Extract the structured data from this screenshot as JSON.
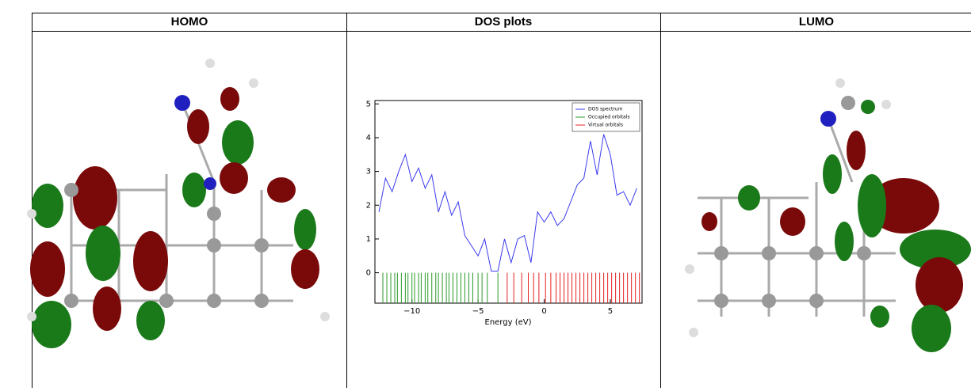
{
  "table": {
    "headers": [
      "HOMO",
      "DOS plots",
      "LUMO"
    ]
  },
  "chart_data": {
    "type": "dos",
    "xlabel": "Energy (eV)",
    "xlim": [
      -12.8,
      7.4
    ],
    "xticks": [
      {
        "value": -10,
        "label": "−10"
      },
      {
        "value": -5,
        "label": "−5"
      },
      0,
      5
    ],
    "ylim": [
      -0.9,
      5.1
    ],
    "yticks": [
      0,
      1,
      2,
      3,
      4,
      5
    ],
    "legend": "upper right",
    "series": [
      {
        "name": "DOS spectrum",
        "color": "#3b3bf0",
        "x": [
          -12.5,
          -12,
          -11.5,
          -11,
          -10.5,
          -10,
          -9.5,
          -9,
          -8.5,
          -8,
          -7.5,
          -7,
          -6.5,
          -6,
          -5.5,
          -5,
          -4.5,
          -4,
          -3.5,
          -3,
          -2.5,
          -2,
          -1.5,
          -1,
          -0.5,
          0,
          0.5,
          1,
          1.5,
          2,
          2.5,
          3,
          3.5,
          4,
          4.5,
          5,
          5.5,
          6,
          6.5,
          7
        ],
        "values": [
          1.8,
          2.8,
          2.4,
          3.0,
          3.5,
          2.7,
          3.1,
          2.5,
          2.9,
          1.8,
          2.4,
          1.7,
          2.1,
          1.1,
          0.8,
          0.5,
          1.0,
          0.05,
          0.05,
          1.0,
          0.3,
          1.0,
          1.1,
          0.3,
          1.8,
          1.5,
          1.8,
          1.4,
          1.6,
          2.1,
          2.6,
          2.8,
          3.9,
          2.9,
          4.1,
          3.5,
          2.3,
          2.4,
          2.0,
          2.5
        ]
      },
      {
        "name": "Occupied orbitals",
        "color": "#2a9a2a",
        "x": [
          -12.2,
          -11.9,
          -11.6,
          -11.3,
          -11.1,
          -10.8,
          -10.5,
          -10.3,
          -10.0,
          -9.8,
          -9.5,
          -9.3,
          -9.0,
          -8.8,
          -8.5,
          -8.2,
          -8.0,
          -7.7,
          -7.4,
          -7.2,
          -6.9,
          -6.6,
          -6.3,
          -6.0,
          -5.7,
          -5.4,
          -5.0,
          -4.7,
          -4.3,
          -3.5
        ]
      },
      {
        "name": "Virtual orbitals",
        "color": "#e82020",
        "x": [
          -2.8,
          -2.3,
          -1.7,
          -1.2,
          -0.8,
          -0.4,
          0.1,
          0.5,
          0.9,
          1.2,
          1.5,
          1.8,
          2.1,
          2.4,
          2.7,
          3.0,
          3.3,
          3.6,
          3.9,
          4.2,
          4.5,
          4.8,
          5.1,
          5.4,
          5.7,
          6.0,
          6.3,
          6.6,
          6.9,
          7.2
        ]
      }
    ]
  }
}
